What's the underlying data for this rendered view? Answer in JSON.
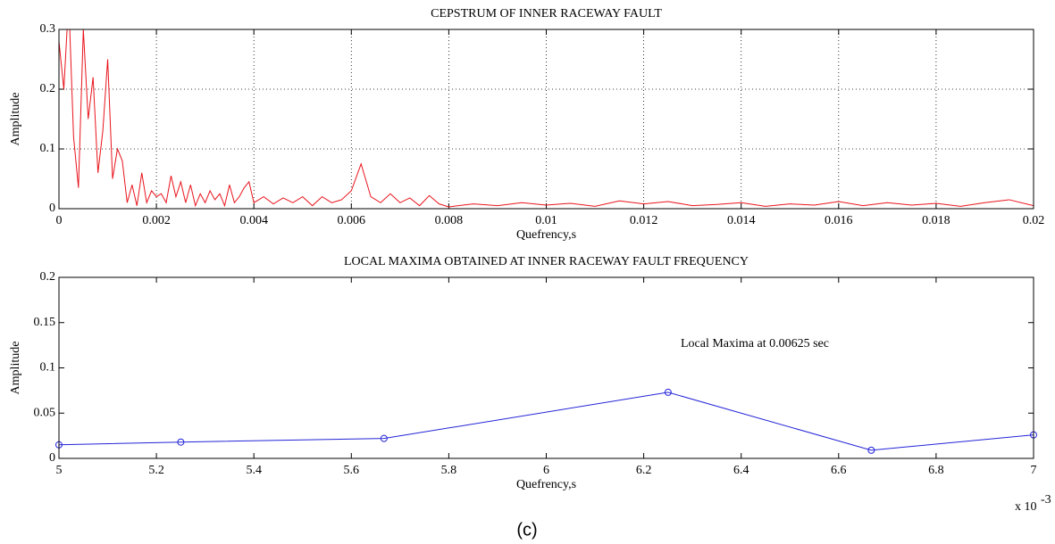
{
  "caption": "(c)",
  "chart_data": [
    {
      "type": "line",
      "title": "CEPSTRUM OF INNER RACEWAY FAULT",
      "xlabel": "Quefrency,s",
      "ylabel": "Amplitude",
      "xlim": [
        0,
        0.02
      ],
      "ylim": [
        0,
        0.3
      ],
      "xticks": [
        0,
        0.002,
        0.004,
        0.006,
        0.008,
        0.01,
        0.012,
        0.014,
        0.016,
        0.018,
        0.02
      ],
      "yticks": [
        0,
        0.1,
        0.2,
        0.3
      ],
      "grid": true,
      "x": [
        0,
        0.0001,
        0.0002,
        0.0003,
        0.0004,
        0.0005,
        0.0006,
        0.0007,
        0.0008,
        0.0009,
        0.001,
        0.0011,
        0.0012,
        0.0013,
        0.0014,
        0.0015,
        0.0016,
        0.0017,
        0.0018,
        0.0019,
        0.002,
        0.0021,
        0.0022,
        0.0023,
        0.0024,
        0.0025,
        0.0026,
        0.0027,
        0.0028,
        0.0029,
        0.003,
        0.0031,
        0.0032,
        0.0033,
        0.0034,
        0.0035,
        0.0036,
        0.0037,
        0.0038,
        0.0039,
        0.004,
        0.0042,
        0.0044,
        0.0046,
        0.0048,
        0.005,
        0.0052,
        0.0054,
        0.0056,
        0.0058,
        0.006,
        0.0062,
        0.0064,
        0.0066,
        0.0068,
        0.007,
        0.0072,
        0.0074,
        0.0076,
        0.0078,
        0.008,
        0.0085,
        0.009,
        0.0095,
        0.01,
        0.0105,
        0.011,
        0.0115,
        0.012,
        0.0125,
        0.013,
        0.0135,
        0.014,
        0.0145,
        0.015,
        0.0155,
        0.016,
        0.0165,
        0.017,
        0.0175,
        0.018,
        0.0185,
        0.019,
        0.0195,
        0.02
      ],
      "series": [
        {
          "name": "cepstrum",
          "color": "#e8141c",
          "values": [
            0.28,
            0.2,
            0.35,
            0.12,
            0.035,
            0.3,
            0.15,
            0.22,
            0.06,
            0.13,
            0.25,
            0.05,
            0.1,
            0.08,
            0.01,
            0.04,
            0.005,
            0.06,
            0.01,
            0.03,
            0.02,
            0.025,
            0.01,
            0.055,
            0.02,
            0.045,
            0.01,
            0.04,
            0.005,
            0.025,
            0.01,
            0.03,
            0.015,
            0.025,
            0.005,
            0.04,
            0.01,
            0.02,
            0.035,
            0.045,
            0.01,
            0.02,
            0.008,
            0.018,
            0.01,
            0.02,
            0.005,
            0.02,
            0.01,
            0.015,
            0.03,
            0.075,
            0.02,
            0.01,
            0.025,
            0.01,
            0.018,
            0.005,
            0.022,
            0.008,
            0.003,
            0.008,
            0.005,
            0.01,
            0.006,
            0.009,
            0.004,
            0.013,
            0.008,
            0.012,
            0.005,
            0.007,
            0.01,
            0.004,
            0.008,
            0.006,
            0.012,
            0.005,
            0.01,
            0.006,
            0.009,
            0.004,
            0.01,
            0.015,
            0.005
          ]
        }
      ]
    },
    {
      "type": "line",
      "title": "LOCAL MAXIMA OBTAINED AT INNER RACEWAY FAULT FREQUENCY",
      "xlabel": "Quefrency,s",
      "ylabel": "Amplitude",
      "x_multiplier": "x 10",
      "x_multiplier_exponent": "-3",
      "annotation": "Local Maxima at 0.00625 sec",
      "xlim": [
        5,
        7
      ],
      "ylim": [
        0,
        0.2
      ],
      "xticks": [
        5,
        5.2,
        5.4,
        5.6,
        5.8,
        6,
        6.2,
        6.4,
        6.6,
        6.8,
        7
      ],
      "yticks": [
        0,
        0.05,
        0.1,
        0.15,
        0.2
      ],
      "grid": false,
      "x": [
        5,
        5.25,
        5.667,
        6.25,
        6.667,
        7
      ],
      "series": [
        {
          "name": "local maxima",
          "color": "#2323d8",
          "marker": "circle",
          "values": [
            0.015,
            0.018,
            0.022,
            0.073,
            0.009,
            0.026
          ]
        }
      ]
    }
  ]
}
